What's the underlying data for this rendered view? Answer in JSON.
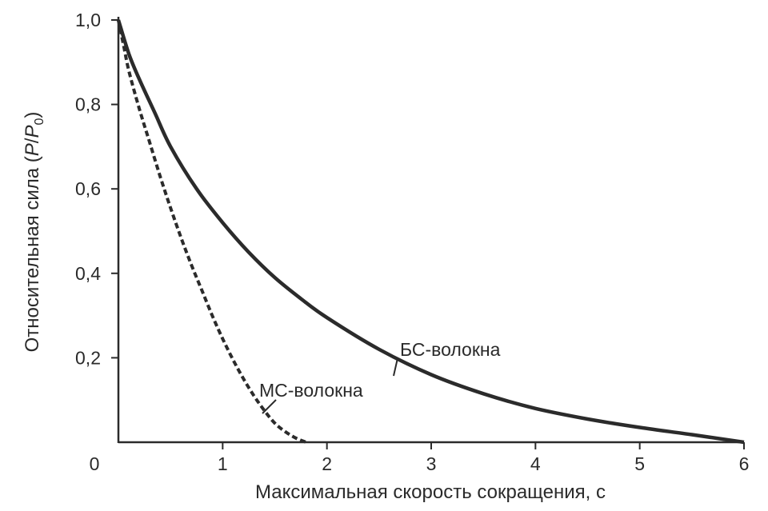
{
  "chart_data": {
    "type": "line",
    "title": "",
    "xlabel": "Максимальная скорость сокращения, с",
    "ylabel_main": "Относительная сила (",
    "ylabel_p": "P",
    "ylabel_slash": "/",
    "ylabel_p0": "P",
    "ylabel_sub": "0",
    "ylabel_close": ")",
    "xlim": [
      0,
      6
    ],
    "ylim": [
      0,
      1.0
    ],
    "x_ticks": [
      {
        "value": 0,
        "label": "0"
      },
      {
        "value": 1,
        "label": "1"
      },
      {
        "value": 2,
        "label": "2"
      },
      {
        "value": 3,
        "label": "3"
      },
      {
        "value": 4,
        "label": "4"
      },
      {
        "value": 5,
        "label": "5"
      },
      {
        "value": 6,
        "label": "6"
      }
    ],
    "y_ticks": [
      {
        "value": 0.2,
        "label": "0,2"
      },
      {
        "value": 0.4,
        "label": "0,4"
      },
      {
        "value": 0.6,
        "label": "0,6"
      },
      {
        "value": 0.8,
        "label": "0,8"
      },
      {
        "value": 1.0,
        "label": "1,0"
      }
    ],
    "grid": false,
    "series": [
      {
        "name": "БС-волокна",
        "style": "solid",
        "color": "#2b2b2b",
        "x": [
          0.0,
          0.1,
          0.2,
          0.35,
          0.5,
          0.75,
          1.0,
          1.25,
          1.5,
          1.75,
          2.0,
          2.5,
          3.0,
          3.5,
          4.0,
          4.5,
          5.0,
          5.5,
          6.0
        ],
        "y": [
          1.0,
          0.92,
          0.86,
          0.78,
          0.7,
          0.6,
          0.52,
          0.45,
          0.39,
          0.34,
          0.295,
          0.22,
          0.16,
          0.115,
          0.08,
          0.055,
          0.035,
          0.018,
          0.0
        ]
      },
      {
        "name": "МС-волокна",
        "style": "dashed",
        "color": "#2b2b2b",
        "x": [
          0.0,
          0.05,
          0.1,
          0.2,
          0.3,
          0.4,
          0.5,
          0.6,
          0.7,
          0.8,
          0.9,
          1.0,
          1.1,
          1.2,
          1.3,
          1.4,
          1.5,
          1.6,
          1.7,
          1.8
        ],
        "y": [
          1.0,
          0.94,
          0.88,
          0.79,
          0.71,
          0.63,
          0.555,
          0.485,
          0.42,
          0.36,
          0.3,
          0.245,
          0.195,
          0.15,
          0.11,
          0.075,
          0.045,
          0.025,
          0.01,
          0.0
        ]
      }
    ],
    "annotations": [
      {
        "text": "БС-волокна",
        "series": "БС-волокна"
      },
      {
        "text": "МС-волокна",
        "series": "МС-волокна"
      }
    ]
  }
}
